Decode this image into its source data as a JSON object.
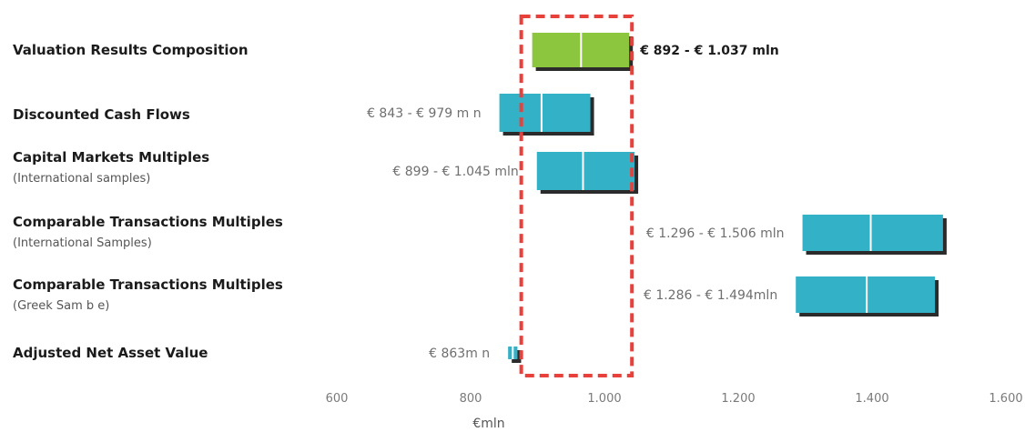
{
  "chart_data": {
    "type": "bar",
    "orientation": "horizontal",
    "subtype": "floating-range",
    "xlabel": "€mln",
    "xlim": [
      600,
      1600
    ],
    "xticks": [
      600,
      800,
      1000,
      1200,
      1400,
      1600
    ],
    "xtick_labels": [
      "600",
      "800",
      "1.000",
      "1.200",
      "1.400",
      "1.600"
    ],
    "highlight_range": [
      892,
      1037
    ],
    "colors": {
      "highlight": "#8cc63f",
      "bar": "#33b1c6",
      "shadow": "#2b2b2b",
      "dashed_box": "#e8403a"
    },
    "categories": [
      {
        "title": "Valuation Results Composition",
        "subtitle": "",
        "low": 892,
        "mid": 965,
        "high": 1037,
        "label": "€ 892 - € 1.037 mln",
        "highlight": true
      },
      {
        "title": "Discounted Cash Flows",
        "subtitle": "",
        "low": 843,
        "mid": 906,
        "high": 979,
        "label": "€ 843 - € 979 m n",
        "highlight": false
      },
      {
        "title": "Capital Markets Multiples",
        "subtitle": "(International samples)",
        "low": 899,
        "mid": 968,
        "high": 1045,
        "label": "€ 899 - € 1.045 mln",
        "highlight": false
      },
      {
        "title": "Comparable Transactions Multiples",
        "subtitle": "(International Samples)",
        "low": 1296,
        "mid": 1398,
        "high": 1506,
        "label": "€ 1.296 - € 1.506 mln",
        "highlight": false
      },
      {
        "title": "Comparable Transactions Multiples",
        "subtitle": "(Greek Sam b e)",
        "low": 1286,
        "mid": 1392,
        "high": 1494,
        "label": "€ 1.286 - € 1.494mln",
        "highlight": false
      },
      {
        "title": "Adjusted Net Asset Value",
        "subtitle": "",
        "low": 856,
        "mid": 863,
        "high": 870,
        "label": "€ 863m n",
        "highlight": false
      }
    ]
  }
}
